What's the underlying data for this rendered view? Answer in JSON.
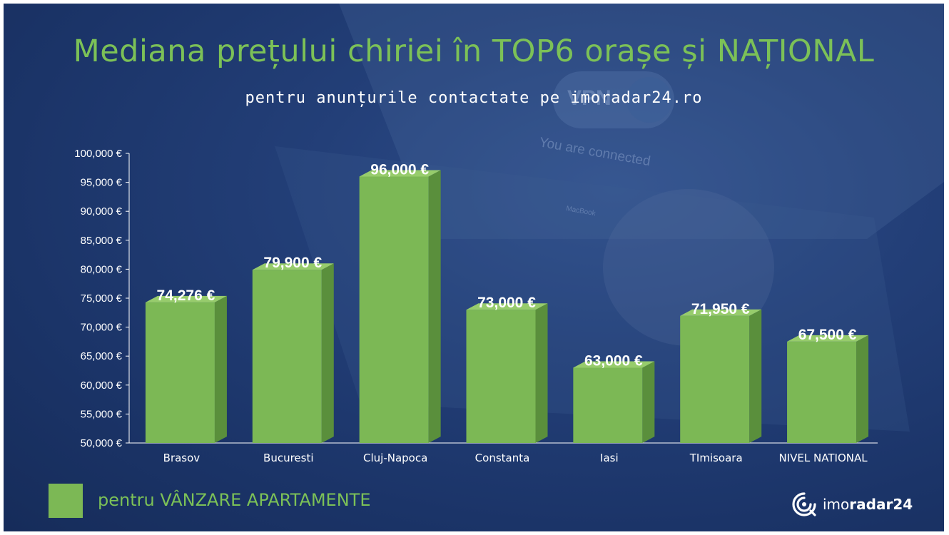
{
  "title": "Mediana prețului chiriei în TOP6 orașe și NAȚIONAL",
  "subtitle": "pentru anunțurile contactate pe imoradar24.ro",
  "legend": {
    "label": "pentru VÂNZARE APARTAMENTE",
    "color": "#7cb855"
  },
  "background_text": {
    "vpn": "VPN",
    "connected": "You are connected",
    "macbook": "MacBook"
  },
  "logo": {
    "prefix": "imo",
    "suffix": "radar24",
    "icon": "radar-signal-icon"
  },
  "chart_data": {
    "type": "bar",
    "categories": [
      "Brasov",
      "Bucuresti",
      "Cluj-Napoca",
      "Constanta",
      "Iasi",
      "TImisoara",
      "NIVEL NATIONAL"
    ],
    "values": [
      74276,
      79900,
      96000,
      73000,
      63000,
      71950,
      67500
    ],
    "value_labels": [
      "74,276 €",
      "79,900 €",
      "96,000 €",
      "73,000 €",
      "63,000 €",
      "71,950 €",
      "67,500 €"
    ],
    "ylim": [
      50000,
      100000
    ],
    "yticks": [
      50000,
      55000,
      60000,
      65000,
      70000,
      75000,
      80000,
      85000,
      90000,
      95000,
      100000
    ],
    "ytick_labels": [
      "50,000 €",
      "55,000 €",
      "60,000 €",
      "65,000 €",
      "70,000 €",
      "75,000 €",
      "80,000 €",
      "85,000 €",
      "90,000 €",
      "95,000 €",
      "100,000 €"
    ],
    "xlabel": "",
    "ylabel": "",
    "grid": false,
    "legend_position": "bottom-left",
    "bar_style": "3d",
    "colors": {
      "front": "#7cb855",
      "top": "#97cc6c",
      "side": "#5a8f3c",
      "axis": "#ffffff"
    }
  }
}
